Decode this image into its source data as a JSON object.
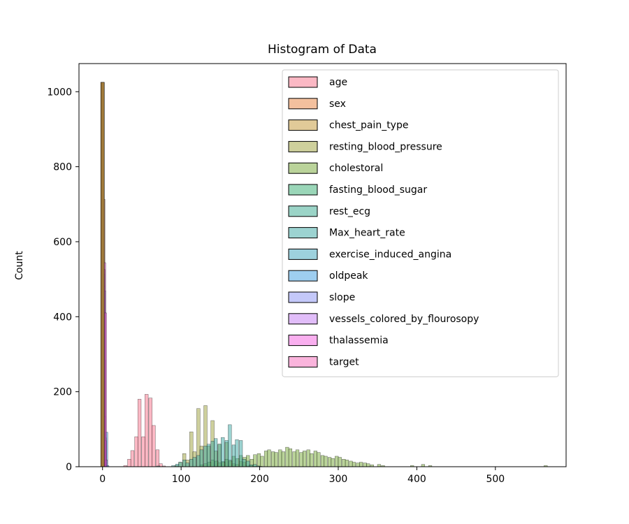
{
  "chart_data": {
    "type": "bar",
    "subtype": "overlapping-histogram",
    "title": "Histogram of Data",
    "xlabel": "",
    "ylabel": "Count",
    "xlim": [
      -30,
      590
    ],
    "ylim": [
      0,
      1075
    ],
    "xticks": [
      0,
      100,
      200,
      300,
      400,
      500
    ],
    "yticks": [
      0,
      200,
      400,
      600,
      800,
      1000
    ],
    "bin_width": 4.5,
    "grid": false,
    "legend_position": "top-right",
    "series": [
      {
        "name": "age",
        "color": "#f77189",
        "bins": [
          [
            29,
            3
          ],
          [
            34,
            20
          ],
          [
            38,
            43
          ],
          [
            43,
            80
          ],
          [
            47,
            180
          ],
          [
            52,
            80
          ],
          [
            56,
            193
          ],
          [
            61,
            183
          ],
          [
            65,
            110
          ],
          [
            70,
            45
          ],
          [
            74,
            8
          ],
          [
            78,
            2
          ]
        ]
      },
      {
        "name": "sex",
        "color": "#e8823e",
        "bins": [
          [
            0,
            312
          ],
          [
            1,
            713
          ]
        ]
      },
      {
        "name": "chest_pain_type",
        "color": "#c39532",
        "bins": [
          [
            0,
            497
          ],
          [
            1,
            167
          ],
          [
            2,
            284
          ],
          [
            3,
            77
          ]
        ]
      },
      {
        "name": "resting_blood_pressure",
        "color": "#9da23a",
        "bins": [
          [
            94,
            3
          ],
          [
            99,
            12
          ],
          [
            104,
            35
          ],
          [
            108,
            18
          ],
          [
            113,
            93
          ],
          [
            117,
            40
          ],
          [
            122,
            155
          ],
          [
            126,
            55
          ],
          [
            131,
            163
          ],
          [
            135,
            55
          ],
          [
            140,
            123
          ],
          [
            144,
            42
          ],
          [
            149,
            60
          ],
          [
            153,
            14
          ],
          [
            158,
            65
          ],
          [
            162,
            18
          ],
          [
            167,
            8
          ],
          [
            171,
            6
          ],
          [
            176,
            14
          ],
          [
            180,
            12
          ],
          [
            185,
            2
          ],
          [
            189,
            3
          ],
          [
            194,
            1
          ]
        ]
      },
      {
        "name": "cholestoral",
        "color": "#76a836",
        "bins": [
          [
            126,
            5
          ],
          [
            131,
            8
          ],
          [
            136,
            12
          ],
          [
            140,
            18
          ],
          [
            145,
            15
          ],
          [
            149,
            10
          ],
          [
            154,
            12
          ],
          [
            158,
            20
          ],
          [
            163,
            15
          ],
          [
            167,
            28
          ],
          [
            172,
            22
          ],
          [
            176,
            30
          ],
          [
            181,
            25
          ],
          [
            185,
            30
          ],
          [
            190,
            20
          ],
          [
            194,
            32
          ],
          [
            199,
            35
          ],
          [
            203,
            28
          ],
          [
            208,
            42
          ],
          [
            212,
            45
          ],
          [
            217,
            40
          ],
          [
            221,
            38
          ],
          [
            226,
            45
          ],
          [
            230,
            40
          ],
          [
            235,
            52
          ],
          [
            239,
            48
          ],
          [
            244,
            40
          ],
          [
            248,
            45
          ],
          [
            253,
            38
          ],
          [
            257,
            42
          ],
          [
            262,
            45
          ],
          [
            266,
            35
          ],
          [
            271,
            42
          ],
          [
            275,
            38
          ],
          [
            280,
            30
          ],
          [
            284,
            28
          ],
          [
            289,
            25
          ],
          [
            293,
            22
          ],
          [
            298,
            28
          ],
          [
            302,
            25
          ],
          [
            307,
            20
          ],
          [
            311,
            18
          ],
          [
            316,
            15
          ],
          [
            320,
            12
          ],
          [
            325,
            10
          ],
          [
            329,
            12
          ],
          [
            334,
            10
          ],
          [
            338,
            8
          ],
          [
            343,
            5
          ],
          [
            352,
            6
          ],
          [
            357,
            3
          ],
          [
            394,
            3
          ],
          [
            408,
            6
          ],
          [
            417,
            3
          ],
          [
            564,
            3
          ]
        ]
      },
      {
        "name": "fasting_blood_sugar",
        "color": "#36ad72",
        "bins": [
          [
            0,
            872
          ],
          [
            1,
            153
          ]
        ]
      },
      {
        "name": "rest_ecg",
        "color": "#38aa8f",
        "bins": [
          [
            0,
            497
          ],
          [
            1,
            513
          ],
          [
            2,
            15
          ]
        ]
      },
      {
        "name": "Max_heart_rate",
        "color": "#39a7a3",
        "bins": [
          [
            71,
            2
          ],
          [
            90,
            3
          ],
          [
            95,
            7
          ],
          [
            99,
            12
          ],
          [
            104,
            18
          ],
          [
            108,
            10
          ],
          [
            113,
            20
          ],
          [
            117,
            25
          ],
          [
            122,
            30
          ],
          [
            126,
            45
          ],
          [
            131,
            55
          ],
          [
            135,
            60
          ],
          [
            140,
            68
          ],
          [
            144,
            75
          ],
          [
            149,
            60
          ],
          [
            153,
            78
          ],
          [
            158,
            70
          ],
          [
            162,
            112
          ],
          [
            167,
            58
          ],
          [
            171,
            72
          ],
          [
            176,
            70
          ],
          [
            180,
            20
          ],
          [
            185,
            15
          ],
          [
            189,
            5
          ],
          [
            194,
            6
          ],
          [
            198,
            2
          ],
          [
            201,
            1
          ]
        ]
      },
      {
        "name": "exercise_induced_angina",
        "color": "#3ba3bc",
        "bins": [
          [
            0,
            680
          ],
          [
            1,
            345
          ]
        ]
      },
      {
        "name": "oldpeak",
        "color": "#3d9ee2",
        "bins": [
          [
            0,
            920
          ],
          [
            4.5,
            92
          ],
          [
            6,
            3
          ]
        ]
      },
      {
        "name": "slope",
        "color": "#8a91f3",
        "bins": [
          [
            0,
            74
          ],
          [
            1,
            482
          ],
          [
            2,
            469
          ]
        ]
      },
      {
        "name": "vessels_colored_by_flourosopy",
        "color": "#c37cf4",
        "bins": [
          [
            0,
            578
          ],
          [
            1,
            226
          ],
          [
            2,
            134
          ],
          [
            3,
            69
          ],
          [
            4,
            18
          ]
        ]
      },
      {
        "name": "thalassemia",
        "color": "#f35fe0",
        "bins": [
          [
            0,
            7
          ],
          [
            1,
            64
          ],
          [
            2,
            544
          ],
          [
            3,
            410
          ]
        ]
      },
      {
        "name": "target",
        "color": "#f66ab9",
        "bins": [
          [
            0,
            499
          ],
          [
            1,
            526
          ]
        ]
      }
    ],
    "combined_bar_near_zero": {
      "x": 0,
      "value": 1025
    }
  }
}
